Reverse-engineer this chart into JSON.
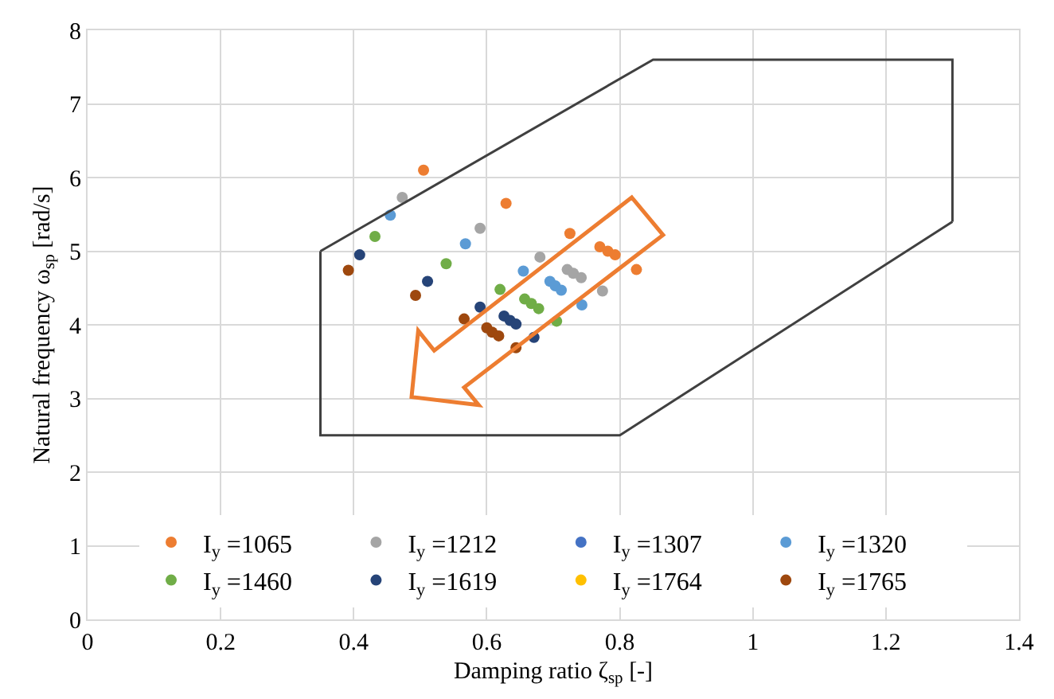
{
  "chart_data": {
    "type": "scatter",
    "xlabel": "Damping ratio ζ$_{sp}$ [-]",
    "ylabel": "Natural frequency ω$_{sp}$ [rad/s]",
    "xlim": [
      0,
      1.4
    ],
    "xticks": [
      0,
      0.2,
      0.4,
      0.6,
      0.8,
      1,
      1.2,
      1.4
    ],
    "ylim": [
      0,
      8
    ],
    "yticks": [
      0,
      1,
      2,
      3,
      4,
      5,
      6,
      7,
      8
    ],
    "grid": true,
    "legend": "bottom",
    "marker": "circle",
    "series": [
      {
        "name": "I$_{y}$ =1065",
        "color": "#ed7d31",
        "x": [
          0.505,
          0.629,
          0.725,
          0.77,
          0.782,
          0.793,
          0.825
        ],
        "values": [
          6.1,
          5.65,
          5.24,
          5.06,
          5.0,
          4.95,
          4.75
        ]
      },
      {
        "name": "I$_{y}$ =1212",
        "color": "#a5a5a5",
        "x": [
          0.473,
          0.59,
          0.68,
          0.721,
          0.73,
          0.742,
          0.774
        ],
        "values": [
          5.73,
          5.31,
          4.92,
          4.75,
          4.7,
          4.64,
          4.46
        ]
      },
      {
        "name": "I$_{y}$ =1307",
        "color": "#4472c4",
        "x": [
          null
        ],
        "values": [
          null
        ]
      },
      {
        "name": "I$_{y}$ =1320",
        "color": "#5b9bd5",
        "x": [
          0.455,
          0.568,
          0.655,
          0.695,
          0.703,
          0.712,
          0.743
        ],
        "values": [
          5.49,
          5.1,
          4.73,
          4.59,
          4.53,
          4.47,
          4.27
        ]
      },
      {
        "name": "I$_{y}$ =1460",
        "color": "#70ad47",
        "x": [
          0.432,
          0.539,
          0.62,
          0.657,
          0.667,
          0.678,
          0.705
        ],
        "values": [
          5.2,
          4.83,
          4.48,
          4.35,
          4.29,
          4.22,
          4.05
        ]
      },
      {
        "name": "I$_{y}$ =1619",
        "color": "#264478",
        "x": [
          0.409,
          0.511,
          0.59,
          0.626,
          0.635,
          0.644,
          0.671
        ],
        "values": [
          4.95,
          4.59,
          4.24,
          4.12,
          4.06,
          4.01,
          3.83
        ]
      },
      {
        "name": "I$_{y}$ =1764",
        "color": "#ffc000",
        "x": [
          null
        ],
        "values": [
          null
        ]
      },
      {
        "name": "I$_{y}$ =1765",
        "color": "#9e480e",
        "x": [
          0.392,
          0.493,
          0.566,
          0.6,
          0.608,
          0.618,
          0.644
        ],
        "values": [
          4.74,
          4.4,
          4.08,
          3.96,
          3.9,
          3.85,
          3.69
        ]
      },
      {
        "type": "line",
        "color": "#404040",
        "marker": "none",
        "x": [
          0.35,
          0.85,
          1.3,
          1.3
        ],
        "values": [
          5.0,
          7.6,
          7.6,
          5.4
        ]
      },
      {
        "type": "line",
        "color": "#404040",
        "marker": "none",
        "x": [
          0.35,
          0.35,
          0.8,
          1.3
        ],
        "values": [
          5.0,
          2.5,
          2.5,
          5.4
        ]
      }
    ]
  }
}
